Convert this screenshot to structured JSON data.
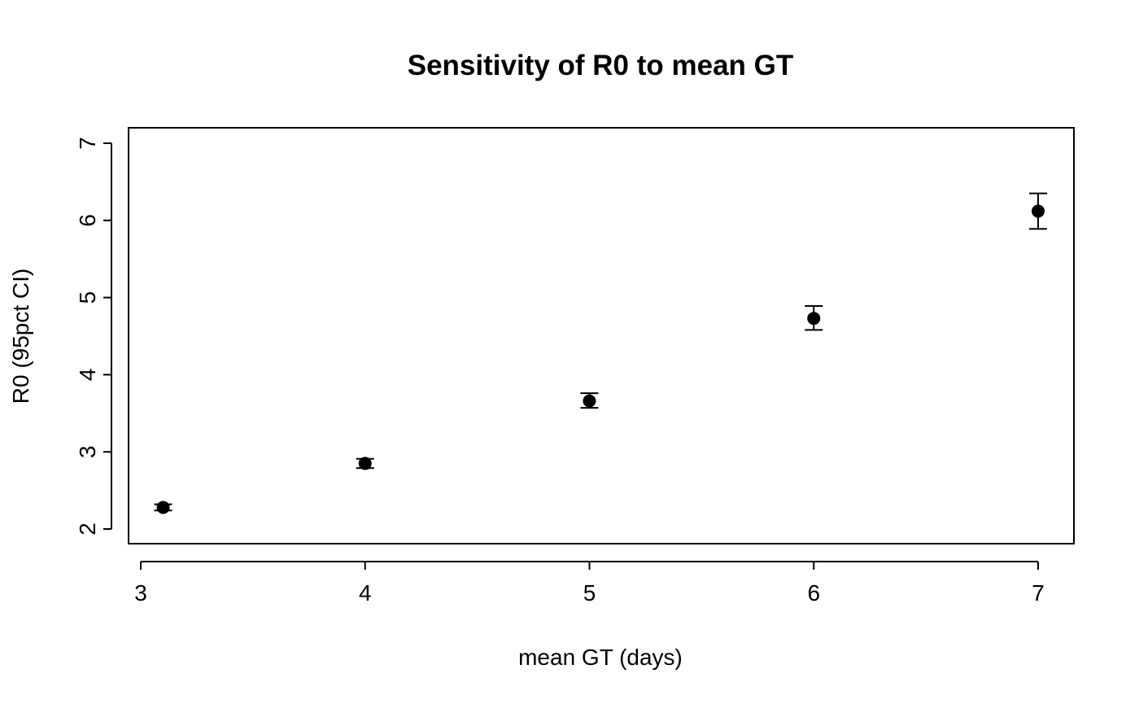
{
  "chart_data": {
    "type": "scatter",
    "title": "Sensitivity of R0 to mean GT",
    "xlabel": "mean GT (days)",
    "ylabel": "R0 (95pct CI)",
    "xlim": [
      3.0,
      7.0
    ],
    "ylim": [
      2.0,
      7.0
    ],
    "xticks": [
      3,
      4,
      5,
      6,
      7
    ],
    "yticks": [
      2,
      3,
      4,
      5,
      6,
      7
    ],
    "grid": false,
    "points": [
      {
        "x": 3.1,
        "y": 2.28,
        "lower": 2.24,
        "upper": 2.32
      },
      {
        "x": 4.0,
        "y": 2.85,
        "lower": 2.79,
        "upper": 2.91
      },
      {
        "x": 5.0,
        "y": 3.66,
        "lower": 3.57,
        "upper": 3.76
      },
      {
        "x": 6.0,
        "y": 4.73,
        "lower": 4.58,
        "upper": 4.89
      },
      {
        "x": 7.0,
        "y": 6.12,
        "lower": 5.89,
        "upper": 6.35
      }
    ],
    "marker_color": "#000000"
  }
}
